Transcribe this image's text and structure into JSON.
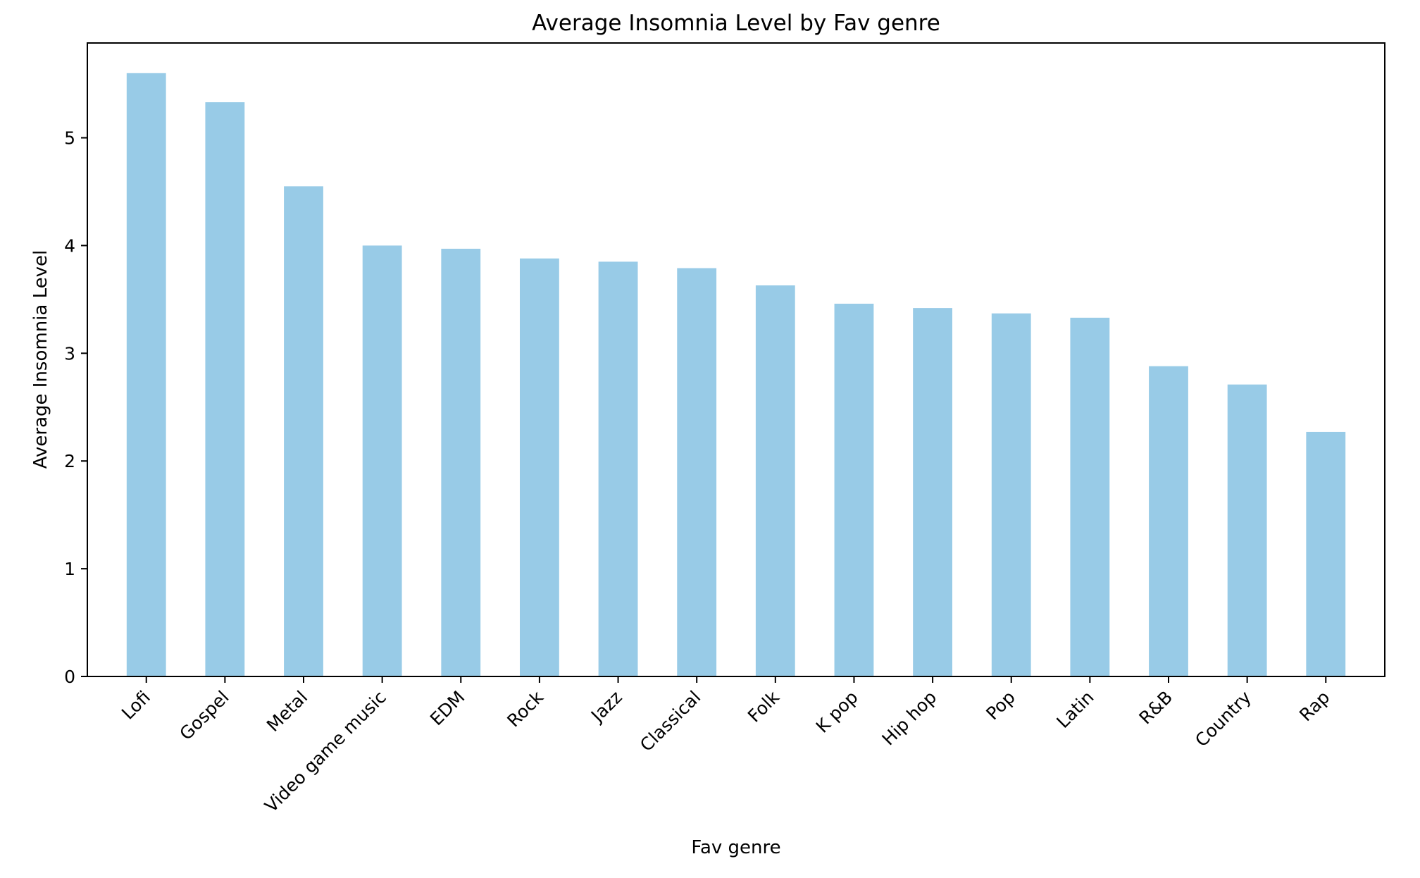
{
  "chart_data": {
    "type": "bar",
    "title": "Average Insomnia Level by Fav genre",
    "xlabel": "Fav genre",
    "ylabel": "Average Insomnia Level",
    "categories": [
      "Lofi",
      "Gospel",
      "Metal",
      "Video game music",
      "EDM",
      "Rock",
      "Jazz",
      "Classical",
      "Folk",
      "K pop",
      "Hip hop",
      "Pop",
      "Latin",
      "R&B",
      "Country",
      "Rap"
    ],
    "values": [
      5.6,
      5.33,
      4.55,
      4.0,
      3.97,
      3.88,
      3.85,
      3.79,
      3.63,
      3.46,
      3.42,
      3.37,
      3.33,
      2.88,
      2.71,
      2.27
    ],
    "ylim": [
      0,
      5.88
    ],
    "yticks": [
      0,
      1,
      2,
      3,
      4,
      5
    ],
    "bar_color": "#98cbe7",
    "grid": false,
    "legend": "none"
  }
}
